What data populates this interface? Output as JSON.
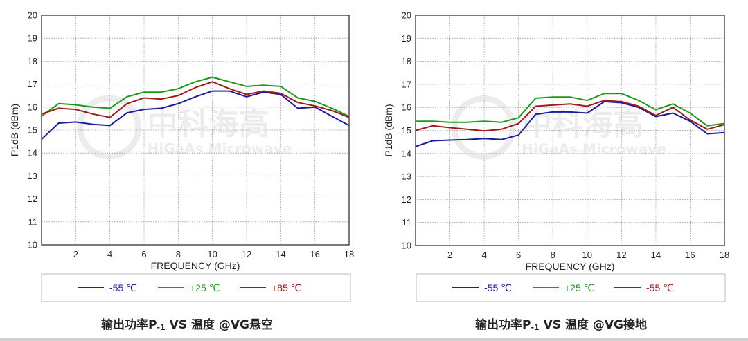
{
  "charts": [
    {
      "chart_data": {
        "type": "line",
        "xlabel": "FREQUENCY (GHz)",
        "ylabel": "P1dB (dBm)",
        "xlim": [
          0,
          18
        ],
        "ylim": [
          10,
          20
        ],
        "x_ticks": [
          2,
          4,
          6,
          8,
          10,
          12,
          14,
          16,
          18
        ],
        "y_ticks": [
          10,
          11,
          12,
          13,
          14,
          15,
          16,
          17,
          18,
          19,
          20
        ],
        "grid": true,
        "legend": "bottom",
        "series": [
          {
            "name": "-55 ℃",
            "color": "#1a1aa0",
            "x": [
              0,
              1,
              2,
              3,
              4,
              5,
              6,
              7,
              8,
              9,
              10,
              11,
              12,
              13,
              14,
              15,
              16,
              17,
              18
            ],
            "y": [
              14.6,
              15.3,
              15.35,
              15.25,
              15.2,
              15.75,
              15.9,
              15.95,
              16.15,
              16.45,
              16.7,
              16.7,
              16.45,
              16.65,
              16.55,
              15.95,
              16.0,
              15.6,
              15.2
            ]
          },
          {
            "name": "+25 ℃",
            "color": "#1a9a1a",
            "x": [
              0,
              1,
              2,
              3,
              4,
              5,
              6,
              7,
              8,
              9,
              10,
              11,
              12,
              13,
              14,
              15,
              16,
              17,
              18
            ],
            "y": [
              15.6,
              16.15,
              16.1,
              16.0,
              15.95,
              16.45,
              16.65,
              16.65,
              16.8,
              17.1,
              17.3,
              17.1,
              16.9,
              16.95,
              16.9,
              16.4,
              16.25,
              15.95,
              15.6
            ]
          },
          {
            "name": "+85 ℃",
            "color": "#a01a1a",
            "x": [
              0,
              1,
              2,
              3,
              4,
              5,
              6,
              7,
              8,
              9,
              10,
              11,
              12,
              13,
              14,
              15,
              16,
              17,
              18
            ],
            "y": [
              15.7,
              15.95,
              15.9,
              15.7,
              15.55,
              16.15,
              16.4,
              16.35,
              16.5,
              16.85,
              17.1,
              16.8,
              16.55,
              16.7,
              16.6,
              16.2,
              16.05,
              15.85,
              15.55
            ]
          }
        ]
      },
      "caption": {
        "main": "输出功率P",
        "sub": "-1",
        "rest": "  VS 温度 @VG悬空"
      },
      "watermark": {
        "cn": "中科海高",
        "en": "HiGaAs Microwave"
      }
    },
    {
      "chart_data": {
        "type": "line",
        "xlabel": "FREQUENCY (GHz)",
        "ylabel": "P1dB (dBm)",
        "xlim": [
          0,
          18
        ],
        "ylim": [
          10,
          20
        ],
        "x_ticks": [
          2,
          4,
          6,
          8,
          10,
          12,
          14,
          16,
          18
        ],
        "y_ticks": [
          10,
          11,
          12,
          13,
          14,
          15,
          16,
          17,
          18,
          19,
          20
        ],
        "grid": true,
        "legend": "bottom",
        "series": [
          {
            "name": "-55 ℃",
            "color": "#1a1aa0",
            "x": [
              0,
              1,
              2,
              3,
              4,
              5,
              6,
              7,
              8,
              9,
              10,
              11,
              12,
              13,
              14,
              15,
              16,
              17,
              18
            ],
            "y": [
              14.3,
              14.55,
              14.58,
              14.6,
              14.65,
              14.6,
              14.8,
              15.7,
              15.8,
              15.8,
              15.75,
              16.25,
              16.2,
              16.0,
              15.6,
              15.75,
              15.4,
              14.85,
              14.9
            ]
          },
          {
            "name": "+25 ℃",
            "color": "#1a9a1a",
            "x": [
              0,
              1,
              2,
              3,
              4,
              5,
              6,
              7,
              8,
              9,
              10,
              11,
              12,
              13,
              14,
              15,
              16,
              17,
              18
            ],
            "y": [
              15.4,
              15.4,
              15.35,
              15.35,
              15.4,
              15.35,
              15.55,
              16.4,
              16.45,
              16.45,
              16.3,
              16.6,
              16.6,
              16.3,
              15.9,
              16.15,
              15.75,
              15.2,
              15.3
            ]
          },
          {
            "name": "-55 ℃",
            "color": "#a01a1a",
            "x": [
              0,
              1,
              2,
              3,
              4,
              5,
              6,
              7,
              8,
              9,
              10,
              11,
              12,
              13,
              14,
              15,
              16,
              17,
              18
            ],
            "y": [
              15.0,
              15.2,
              15.12,
              15.05,
              14.98,
              15.05,
              15.3,
              16.05,
              16.1,
              16.15,
              16.05,
              16.3,
              16.25,
              16.05,
              15.65,
              16.0,
              15.45,
              15.05,
              15.25
            ]
          }
        ]
      },
      "caption": {
        "main": "输出功率P",
        "sub": "-1",
        "rest": "  VS 温度 @VG接地"
      },
      "watermark": {
        "cn": "中科海高",
        "en": "HiGaAs Microwave"
      }
    }
  ]
}
